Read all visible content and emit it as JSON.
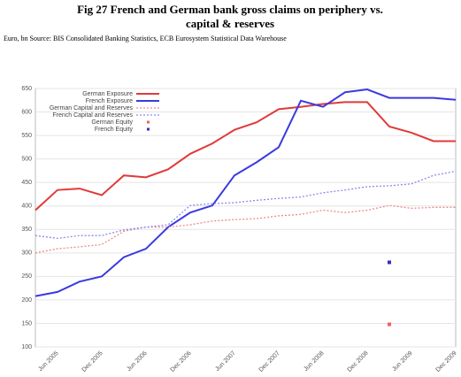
{
  "chart_data": {
    "type": "line",
    "title": "Fig 27 French and German bank gross claims on periphery vs.",
    "title2": "capital & reserves",
    "subtitle": "Euro, bn Source: BIS Consolidated Banking Statistics, ECB Eurosystem Statistical Data Warehouse",
    "categories": [
      null,
      "Jun 2005",
      null,
      "Dec 2005",
      null,
      "Jun 2006",
      null,
      "Dec 2006",
      null,
      "Jun 2007",
      null,
      "Dec 2007",
      null,
      "Jun 2008",
      null,
      "Dec 2008",
      null,
      "Jun 2009",
      null,
      "Dec 2009"
    ],
    "ylim": [
      100,
      650
    ],
    "yticks": [
      100,
      150,
      200,
      250,
      300,
      350,
      400,
      450,
      500,
      550,
      600,
      650
    ],
    "grid": true,
    "legend": "top-left",
    "series": [
      {
        "name": "German Exposure",
        "color": "#e03a3a",
        "style": "solid",
        "values": [
          391,
          434,
          437,
          423,
          465,
          461,
          478,
          511,
          533,
          562,
          578,
          606,
          611,
          617,
          621,
          621,
          569,
          556,
          538,
          538
        ]
      },
      {
        "name": "French Exposure",
        "color": "#3a3ae0",
        "style": "solid",
        "values": [
          208,
          217,
          239,
          250,
          291,
          309,
          355,
          386,
          401,
          465,
          493,
          525,
          624,
          611,
          642,
          648,
          630,
          630,
          630,
          626
        ]
      },
      {
        "name": "German Capital and Reserves",
        "color": "#f08a8a",
        "style": "dotted",
        "values": [
          300,
          309,
          313,
          318,
          346,
          355,
          355,
          360,
          368,
          371,
          373,
          379,
          382,
          391,
          386,
          391,
          401,
          395,
          397,
          397
        ]
      },
      {
        "name": "French Capital and Reserves",
        "color": "#8a8af0",
        "style": "dotted",
        "values": [
          337,
          331,
          337,
          337,
          349,
          355,
          360,
          401,
          405,
          407,
          412,
          416,
          419,
          428,
          434,
          441,
          443,
          447,
          465,
          474
        ]
      },
      {
        "name": "German Equity",
        "color": "#f06060",
        "style": "point",
        "values": [
          null,
          null,
          null,
          null,
          null,
          null,
          null,
          null,
          null,
          null,
          null,
          null,
          null,
          null,
          null,
          null,
          148,
          null,
          null,
          null
        ]
      },
      {
        "name": "French Equity",
        "color": "#3030c0",
        "style": "point",
        "values": [
          null,
          null,
          null,
          null,
          null,
          null,
          null,
          null,
          null,
          null,
          null,
          null,
          null,
          null,
          null,
          null,
          280,
          null,
          null,
          null
        ]
      }
    ]
  }
}
